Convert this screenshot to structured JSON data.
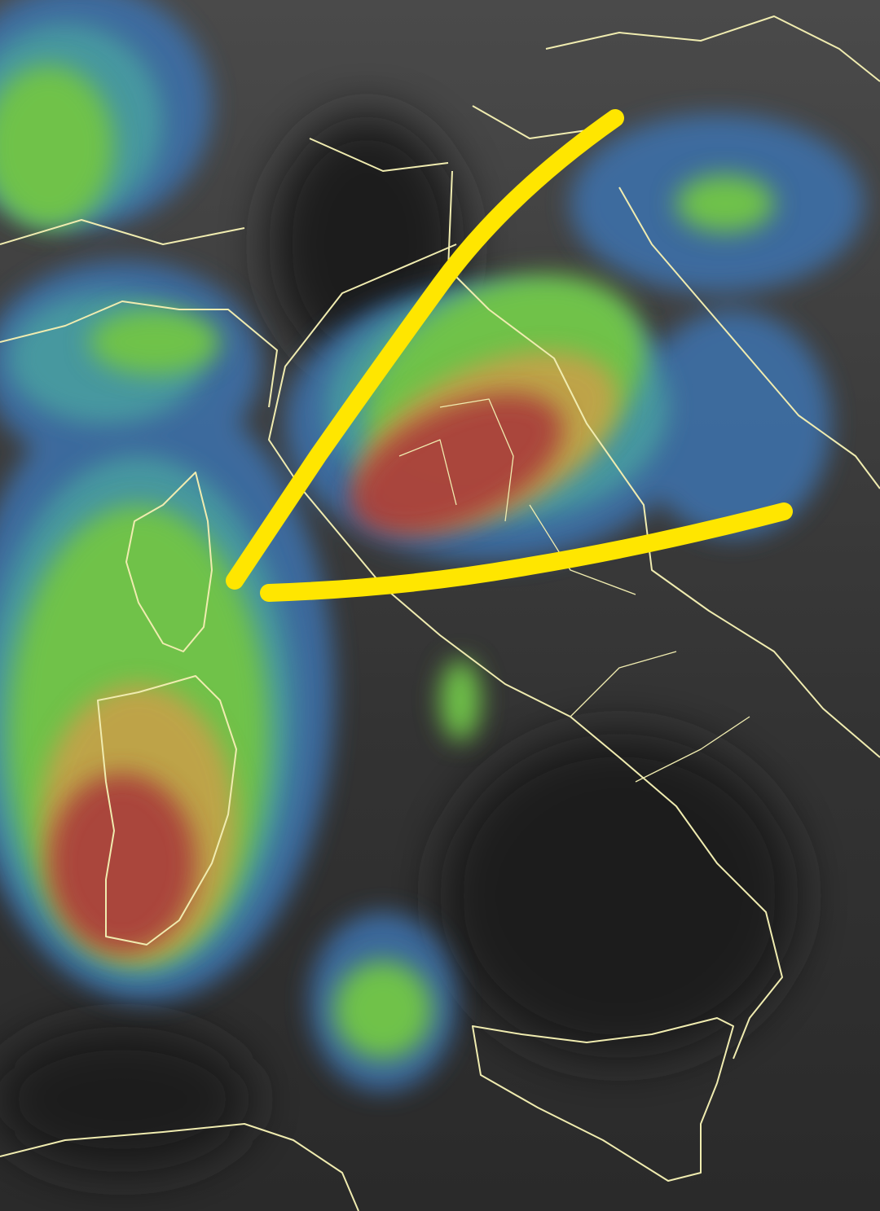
{
  "map": {
    "type": "satellite-infrared-enhanced",
    "colors": {
      "background": "#3a3a3a",
      "cloud_low": "#3d6fa8",
      "cloud_mid": "#4aa0a0",
      "cloud_high": "#6fc24a",
      "cloud_top": "#c8a04a",
      "cloud_coldest": "#a83a3a",
      "borders": "#f0ecb0",
      "annotation": "#ffe600"
    },
    "annotations": [
      {
        "kind": "hand-drawn-line",
        "color": "#ffe600"
      },
      {
        "kind": "hand-drawn-line",
        "color": "#ffe600"
      }
    ]
  }
}
